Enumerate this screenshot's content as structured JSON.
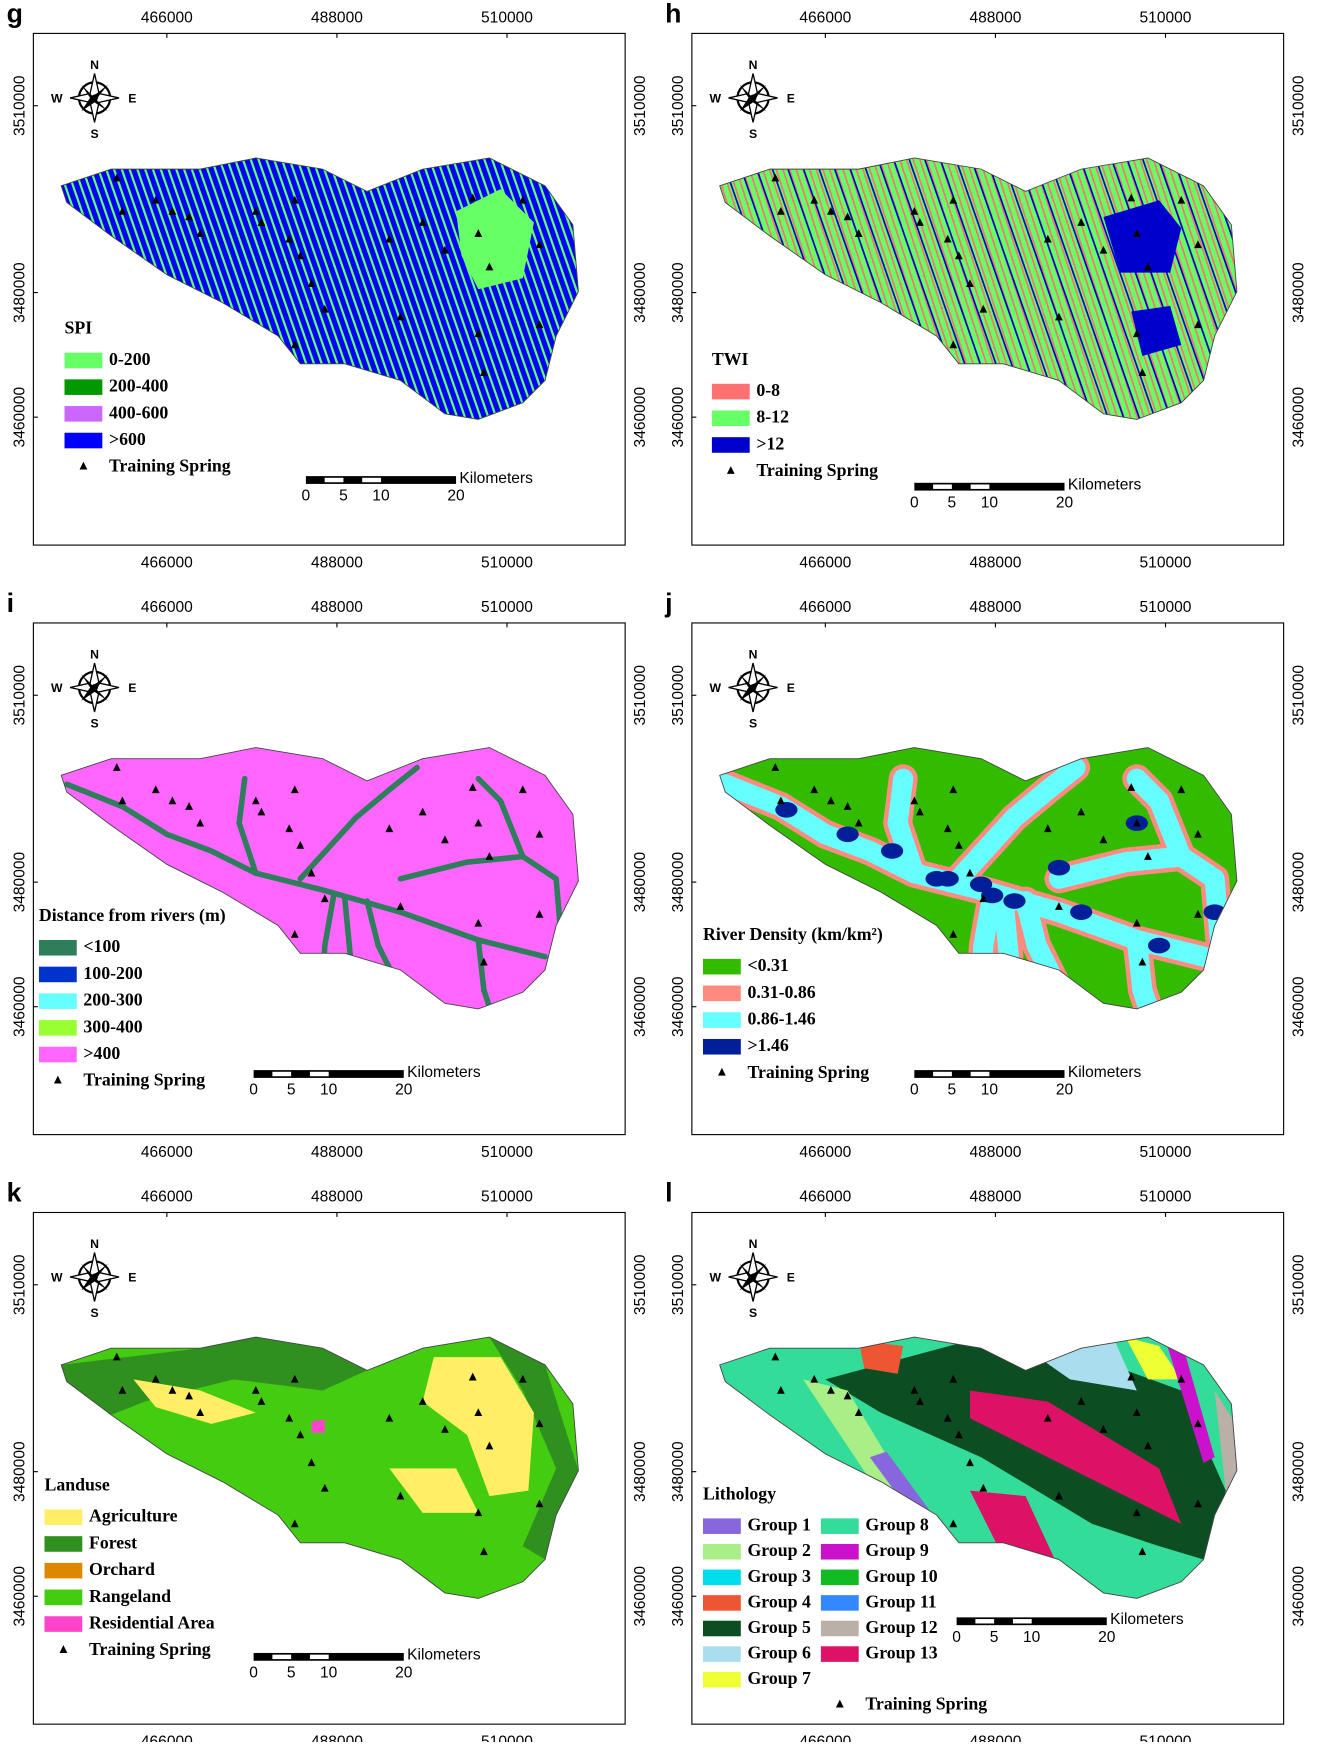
{
  "x_ticks": [
    466000,
    488000,
    510000
  ],
  "y_ticks": [
    3460000,
    3480000,
    3510000
  ],
  "compass": {
    "n": "N",
    "s": "S",
    "w": "W",
    "e": "E"
  },
  "scale_bar": {
    "ticks": [
      0,
      5,
      10,
      20
    ],
    "unit": "Kilometers"
  },
  "spring_label": "Training Spring",
  "panels": [
    {
      "letter": "g",
      "legend_title": "SPI",
      "legend": [
        {
          "label": "0-200",
          "color": "#66ff66"
        },
        {
          "label": "200-400",
          "color": "#009900"
        },
        {
          "label": "400-600",
          "color": "#cc66ff"
        },
        {
          "label": ">600",
          "color": "#0000ff"
        }
      ]
    },
    {
      "letter": "h",
      "legend_title": "TWI",
      "legend": [
        {
          "label": "0-8",
          "color": "#ff7070"
        },
        {
          "label": "8-12",
          "color": "#66ff66"
        },
        {
          "label": ">12",
          "color": "#0000cc"
        }
      ]
    },
    {
      "letter": "i",
      "legend_title": "Distance from rivers (m)",
      "legend": [
        {
          "label": "<100",
          "color": "#2e7d5b"
        },
        {
          "label": "100-200",
          "color": "#0033cc"
        },
        {
          "label": "200-300",
          "color": "#66ffff"
        },
        {
          "label": "300-400",
          "color": "#99ff33"
        },
        {
          "label": ">400",
          "color": "#ff66ff"
        }
      ]
    },
    {
      "letter": "j",
      "legend_title": "River Density (km/km²)",
      "legend": [
        {
          "label": "<0.31",
          "color": "#33bb00"
        },
        {
          "label": "0.31-0.86",
          "color": "#ff8a80"
        },
        {
          "label": "0.86-1.46",
          "color": "#66ffff"
        },
        {
          "label": ">1.46",
          "color": "#001f99"
        }
      ]
    },
    {
      "letter": "k",
      "legend_title": "Landuse",
      "legend": [
        {
          "label": "Agriculture",
          "color": "#ffee66"
        },
        {
          "label": "Forest",
          "color": "#2f8f1f"
        },
        {
          "label": "Orchard",
          "color": "#dd8800"
        },
        {
          "label": "Rangeland",
          "color": "#44cc11"
        },
        {
          "label": "Residential Area",
          "color": "#ff44cc"
        }
      ]
    },
    {
      "letter": "l",
      "legend_title": "Lithology",
      "legend": [
        {
          "label": "Group 1",
          "color": "#8866dd"
        },
        {
          "label": "Group 2",
          "color": "#aaee88"
        },
        {
          "label": "Group 3",
          "color": "#00ddee"
        },
        {
          "label": "Group 4",
          "color": "#ee5533"
        },
        {
          "label": "Group 5",
          "color": "#0d4d22"
        },
        {
          "label": "Group 6",
          "color": "#aaddee"
        },
        {
          "label": "Group 7",
          "color": "#eeff33"
        },
        {
          "label": "Group 8",
          "color": "#33dd99"
        },
        {
          "label": "Group 9",
          "color": "#cc11cc"
        },
        {
          "label": "Group 10",
          "color": "#11bb22"
        },
        {
          "label": "Group 11",
          "color": "#3388ff"
        },
        {
          "label": "Group 12",
          "color": "#bbb0a8"
        },
        {
          "label": "Group 13",
          "color": "#dd1166"
        }
      ]
    }
  ]
}
